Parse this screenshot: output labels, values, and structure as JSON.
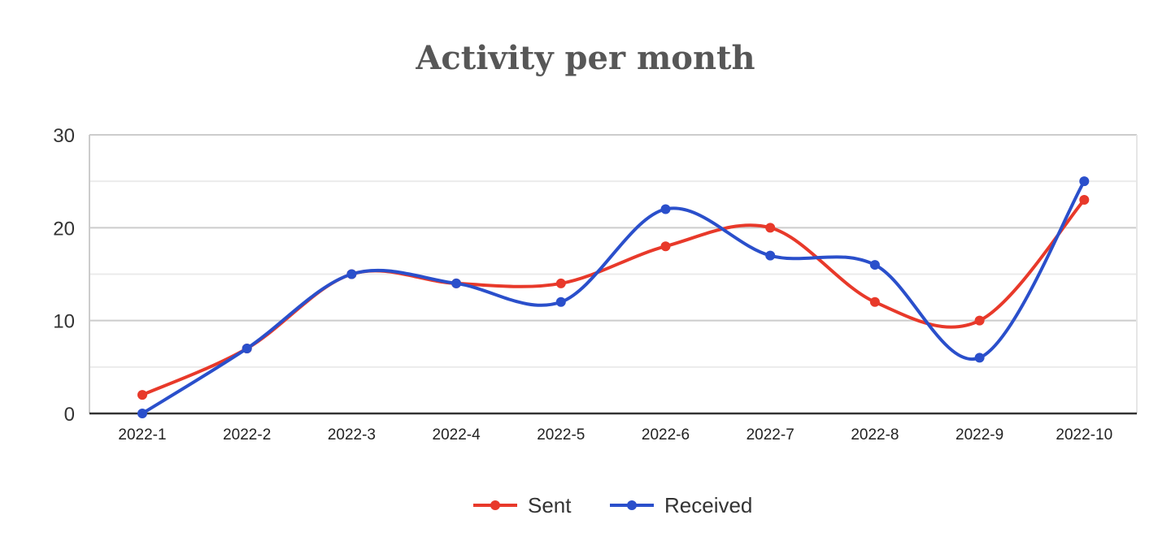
{
  "chart_data": {
    "type": "line",
    "title": "Activity per month",
    "xlabel": "",
    "ylabel": "",
    "categories": [
      "2022-1",
      "2022-2",
      "2022-3",
      "2022-4",
      "2022-5",
      "2022-6",
      "2022-7",
      "2022-8",
      "2022-9",
      "2022-10"
    ],
    "ylim": [
      0,
      30
    ],
    "yticks": [
      "0",
      "10",
      "20",
      "30"
    ],
    "grid": true,
    "smooth": true,
    "legend_position": "bottom",
    "series": [
      {
        "name": "Sent",
        "color": "#e8392a",
        "values": [
          2,
          7,
          15,
          14,
          14,
          18,
          20,
          12,
          10,
          23
        ]
      },
      {
        "name": "Received",
        "color": "#2a4fcb",
        "values": [
          0,
          7,
          15,
          14,
          12,
          22,
          17,
          16,
          6,
          25
        ]
      }
    ]
  }
}
